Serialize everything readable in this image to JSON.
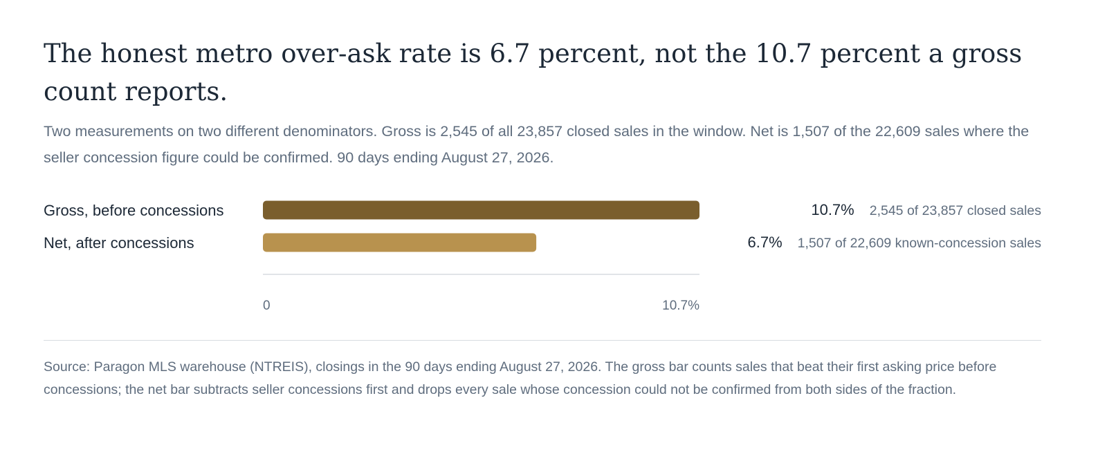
{
  "header": {
    "title": "The honest metro over-ask rate is 6.7 percent, not the 10.7 percent a gross count reports.",
    "subtitle": "Two measurements on two different denominators. Gross is 2,545 of all 23,857 closed sales in the window. Net is 1,507 of the 22,609 sales where the seller concession figure could be confirmed. 90 days ending August 27, 2026."
  },
  "chart_data": {
    "type": "bar",
    "orientation": "horizontal",
    "categories": [
      "Gross, before concessions",
      "Net, after concessions"
    ],
    "values": [
      10.7,
      6.7
    ],
    "value_labels": [
      "10.7%",
      "6.7%"
    ],
    "details": [
      "2,545 of 23,857 closed sales",
      "1,507 of 22,609 known-concession sales"
    ],
    "colors": [
      "#7a5e2d",
      "#b8924e"
    ],
    "xlim": [
      0,
      10.7
    ],
    "tick_labels": [
      "0",
      "10.7%"
    ],
    "grid": false
  },
  "footer": {
    "source": "Source: Paragon MLS warehouse (NTREIS), closings in the 90 days ending August 27, 2026. The gross bar counts sales that beat their first asking price before concessions; the net bar subtracts seller concessions first and drops every sale whose concession could not be confirmed from both sides of the fraction."
  }
}
